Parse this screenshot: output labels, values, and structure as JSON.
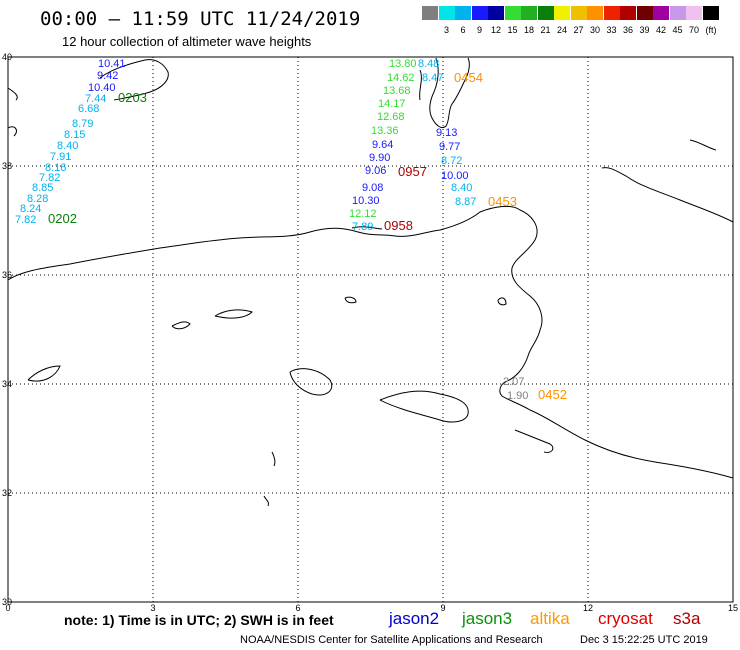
{
  "title": "00:00 – 11:59 UTC 11/24/2019",
  "subtitle": "12 hour collection of altimeter wave heights",
  "legend": {
    "unit": "(ft)",
    "bins": [
      {
        "label": "",
        "color": "#7f7f7f"
      },
      {
        "label": "3",
        "color": "#00e5e5"
      },
      {
        "label": "6",
        "color": "#00b2ee"
      },
      {
        "label": "9",
        "color": "#1a1aff"
      },
      {
        "label": "12",
        "color": "#0000a0"
      },
      {
        "label": "15",
        "color": "#33dd33"
      },
      {
        "label": "18",
        "color": "#22b022"
      },
      {
        "label": "21",
        "color": "#0a7f0a"
      },
      {
        "label": "24",
        "color": "#f0f000"
      },
      {
        "label": "27",
        "color": "#f0c000"
      },
      {
        "label": "30",
        "color": "#ff9000"
      },
      {
        "label": "33",
        "color": "#ee2200"
      },
      {
        "label": "36",
        "color": "#b00000"
      },
      {
        "label": "39",
        "color": "#700000"
      },
      {
        "label": "42",
        "color": "#a000a0"
      },
      {
        "label": "45",
        "color": "#c898e8"
      },
      {
        "label": "70",
        "color": "#f0c0f0"
      },
      {
        "label": "",
        "color": "#000000"
      }
    ]
  },
  "axes": {
    "lon_ticks": [
      "0",
      "3",
      "6",
      "9",
      "12",
      "15"
    ],
    "lat_ticks": [
      "40",
      "38",
      "36",
      "34",
      "32",
      "30"
    ],
    "lon_range": [
      0,
      15
    ],
    "lat_range": [
      30,
      40
    ]
  },
  "tracks": {
    "t0202": [
      {
        "v": "10.41",
        "c": "#1a1aff"
      },
      {
        "v": "9.42",
        "c": "#1a1aff"
      },
      {
        "v": "10.40",
        "c": "#1a1aff"
      },
      {
        "v": "7.44",
        "c": "#00b2ee"
      },
      {
        "v": "6.68",
        "c": "#00b2ee"
      },
      {
        "v": "8.79",
        "c": "#00b2ee"
      },
      {
        "v": "8.15",
        "c": "#00b2ee"
      },
      {
        "v": "8.40",
        "c": "#00b2ee"
      },
      {
        "v": "7.91",
        "c": "#00b2ee"
      },
      {
        "v": "8.16",
        "c": "#00b2ee"
      },
      {
        "v": "7.82",
        "c": "#00b2ee"
      },
      {
        "v": "8.85",
        "c": "#00b2ee"
      },
      {
        "v": "8.28",
        "c": "#00b2ee"
      },
      {
        "v": "8.24",
        "c": "#00b2ee"
      },
      {
        "v": "7.82",
        "c": "#00b2ee"
      }
    ],
    "t0957": [
      {
        "v": "13.80",
        "c": "#33dd33"
      },
      {
        "v": "14.62",
        "c": "#33dd33"
      },
      {
        "v": "13.68",
        "c": "#33dd33"
      },
      {
        "v": "14.17",
        "c": "#33dd33"
      },
      {
        "v": "12.68",
        "c": "#33dd33"
      },
      {
        "v": "13.36",
        "c": "#33dd33"
      },
      {
        "v": "9.64",
        "c": "#1a1aff"
      },
      {
        "v": "9.90",
        "c": "#1a1aff"
      },
      {
        "v": "9.06",
        "c": "#1a1aff"
      },
      {
        "v": "9.08",
        "c": "#1a1aff"
      },
      {
        "v": "10.30",
        "c": "#1a1aff"
      },
      {
        "v": "12.12",
        "c": "#33dd33"
      },
      {
        "v": "7.89",
        "c": "#00b2ee"
      }
    ],
    "t0454": [
      {
        "v": "8.48",
        "c": "#00b2ee"
      },
      {
        "v": "8.47",
        "c": "#00b2ee"
      },
      {
        "v": "9.13",
        "c": "#1a1aff"
      },
      {
        "v": "9.77",
        "c": "#1a1aff"
      },
      {
        "v": "8.72",
        "c": "#00b2ee"
      },
      {
        "v": "10.00",
        "c": "#1a1aff"
      },
      {
        "v": "8.40",
        "c": "#00b2ee"
      },
      {
        "v": "8.87",
        "c": "#00b2ee"
      }
    ],
    "t0452": [
      {
        "v": "2.07",
        "c": "#7f7f7f"
      },
      {
        "v": "1.90",
        "c": "#7f7f7f"
      }
    ]
  },
  "pass_labels": [
    {
      "text": "0203",
      "color": "#0a7f0a"
    },
    {
      "text": "0202",
      "color": "#0a7f0a"
    },
    {
      "text": "0454",
      "color": "#ff9000"
    },
    {
      "text": "0957",
      "color": "#b00000"
    },
    {
      "text": "0958",
      "color": "#b00000"
    },
    {
      "text": "0453",
      "color": "#ff9000"
    },
    {
      "text": "0452",
      "color": "#ff9000"
    }
  ],
  "note": "note: 1) Time is in UTC; 2) SWH is in feet",
  "satellites": [
    {
      "name": "jason2",
      "color": "#0000cc"
    },
    {
      "name": "jason3",
      "color": "#0a8f0a"
    },
    {
      "name": "altika",
      "color": "#ff9900"
    },
    {
      "name": "cryosat",
      "color": "#dd0000"
    },
    {
      "name": "s3a",
      "color": "#b00000"
    }
  ],
  "credit": "NOAA/NESDIS Center for Satellite Applications and Research",
  "credit_date": "Dec  3 15:22:25 UTC 2019"
}
